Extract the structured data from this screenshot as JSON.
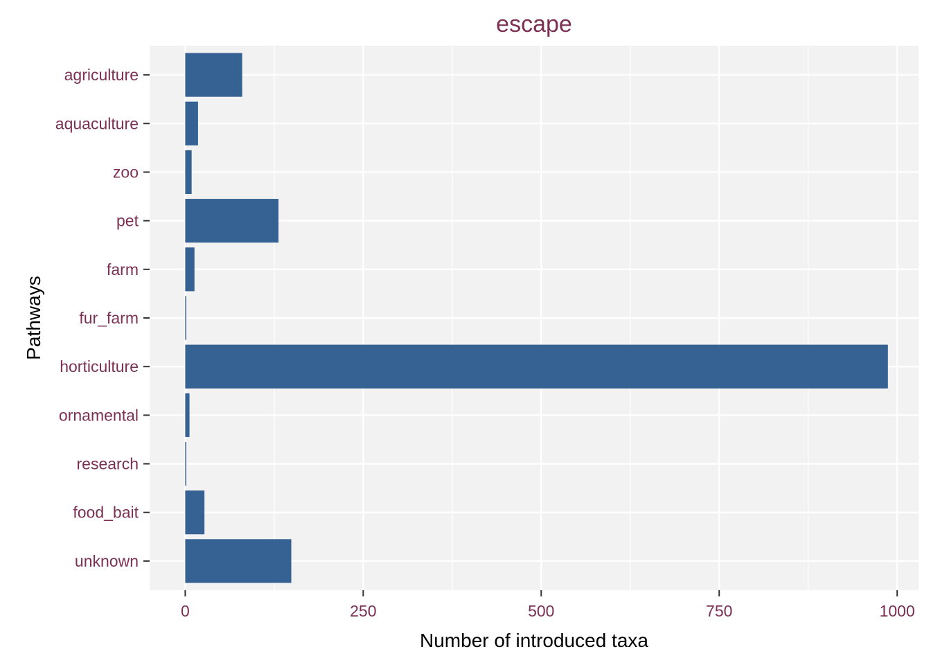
{
  "chart_data": {
    "type": "bar",
    "orientation": "horizontal",
    "title": "escape",
    "xlabel": "Number of introduced taxa",
    "ylabel": "Pathways",
    "categories": [
      "agriculture",
      "aquaculture",
      "zoo",
      "pet",
      "farm",
      "fur_farm",
      "horticulture",
      "ornamental",
      "research",
      "food_bait",
      "unknown"
    ],
    "values": [
      80,
      18,
      9,
      131,
      13,
      1,
      987,
      6,
      1,
      27,
      149
    ],
    "xlim": [
      -50,
      1030
    ],
    "xticks": [
      0,
      250,
      500,
      750,
      1000
    ],
    "grid": true,
    "legend": "none",
    "colors": {
      "bar": "#366193",
      "panel": "#f2f2f2",
      "grid": "#ffffff",
      "tick_text": "#7b3054",
      "title_text": "#7b3054",
      "axis_title": "#000000"
    }
  }
}
